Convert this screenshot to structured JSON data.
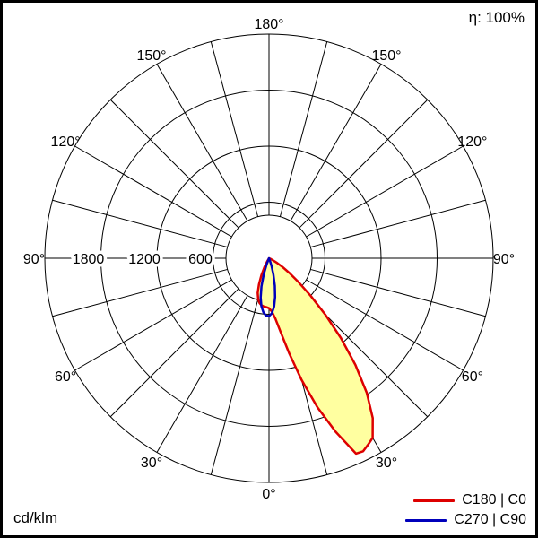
{
  "header": {
    "efficiency_label": "η: 100%"
  },
  "footer": {
    "unit_label": "cd/klm"
  },
  "legend": [
    {
      "label": "C180 | C0",
      "color": "#dd0000"
    },
    {
      "label": "C270 | C90",
      "color": "#0000bb"
    }
  ],
  "chart_data": {
    "type": "polar-line",
    "title": "Luminous intensity distribution (polar photometric curve)",
    "unit": "cd/klm",
    "efficiency": "η: 100%",
    "r_max": 2400,
    "ring_step": 600,
    "ring_labels": [
      600,
      1200,
      1800
    ],
    "angle_tick_step_deg": 15,
    "angle_labels_deg": [
      0,
      30,
      60,
      90,
      120,
      150,
      180
    ],
    "angle_reference": "0-down, positive angles to the right (C0), negative to the left (C180)",
    "grid": true,
    "legend_position": "bottom-right",
    "series": [
      {
        "name": "C180 | C0",
        "color": "#dd0000",
        "fill": "#ffffa0",
        "points": [
          [
            -33,
            0
          ],
          [
            -30,
            40
          ],
          [
            -27,
            110
          ],
          [
            -24,
            200
          ],
          [
            -21,
            300
          ],
          [
            -18,
            390
          ],
          [
            -15,
            450
          ],
          [
            -12,
            490
          ],
          [
            -9,
            510
          ],
          [
            -6,
            520
          ],
          [
            -3,
            525
          ],
          [
            0,
            535
          ],
          [
            3,
            570
          ],
          [
            6,
            650
          ],
          [
            9,
            800
          ],
          [
            12,
            1040
          ],
          [
            15,
            1350
          ],
          [
            18,
            1680
          ],
          [
            21,
            1990
          ],
          [
            24,
            2290
          ],
          [
            26,
            2300
          ],
          [
            28,
            2260
          ],
          [
            30,
            2220
          ],
          [
            33,
            2040
          ],
          [
            36,
            1780
          ],
          [
            39,
            1470
          ],
          [
            42,
            1150
          ],
          [
            45,
            850
          ],
          [
            48,
            600
          ],
          [
            51,
            410
          ],
          [
            54,
            270
          ],
          [
            57,
            170
          ],
          [
            60,
            100
          ],
          [
            63,
            50
          ],
          [
            66,
            20
          ],
          [
            69,
            0
          ]
        ]
      },
      {
        "name": "C270 | C90",
        "color": "#0000bb",
        "fill": "none",
        "points": [
          [
            -24,
            0
          ],
          [
            -21,
            70
          ],
          [
            -18,
            180
          ],
          [
            -15,
            310
          ],
          [
            -12,
            430
          ],
          [
            -9,
            520
          ],
          [
            -6,
            580
          ],
          [
            -3,
            615
          ],
          [
            0,
            620
          ],
          [
            3,
            590
          ],
          [
            6,
            520
          ],
          [
            9,
            420
          ],
          [
            12,
            300
          ],
          [
            15,
            180
          ],
          [
            18,
            90
          ],
          [
            21,
            30
          ],
          [
            24,
            0
          ]
        ]
      }
    ]
  }
}
